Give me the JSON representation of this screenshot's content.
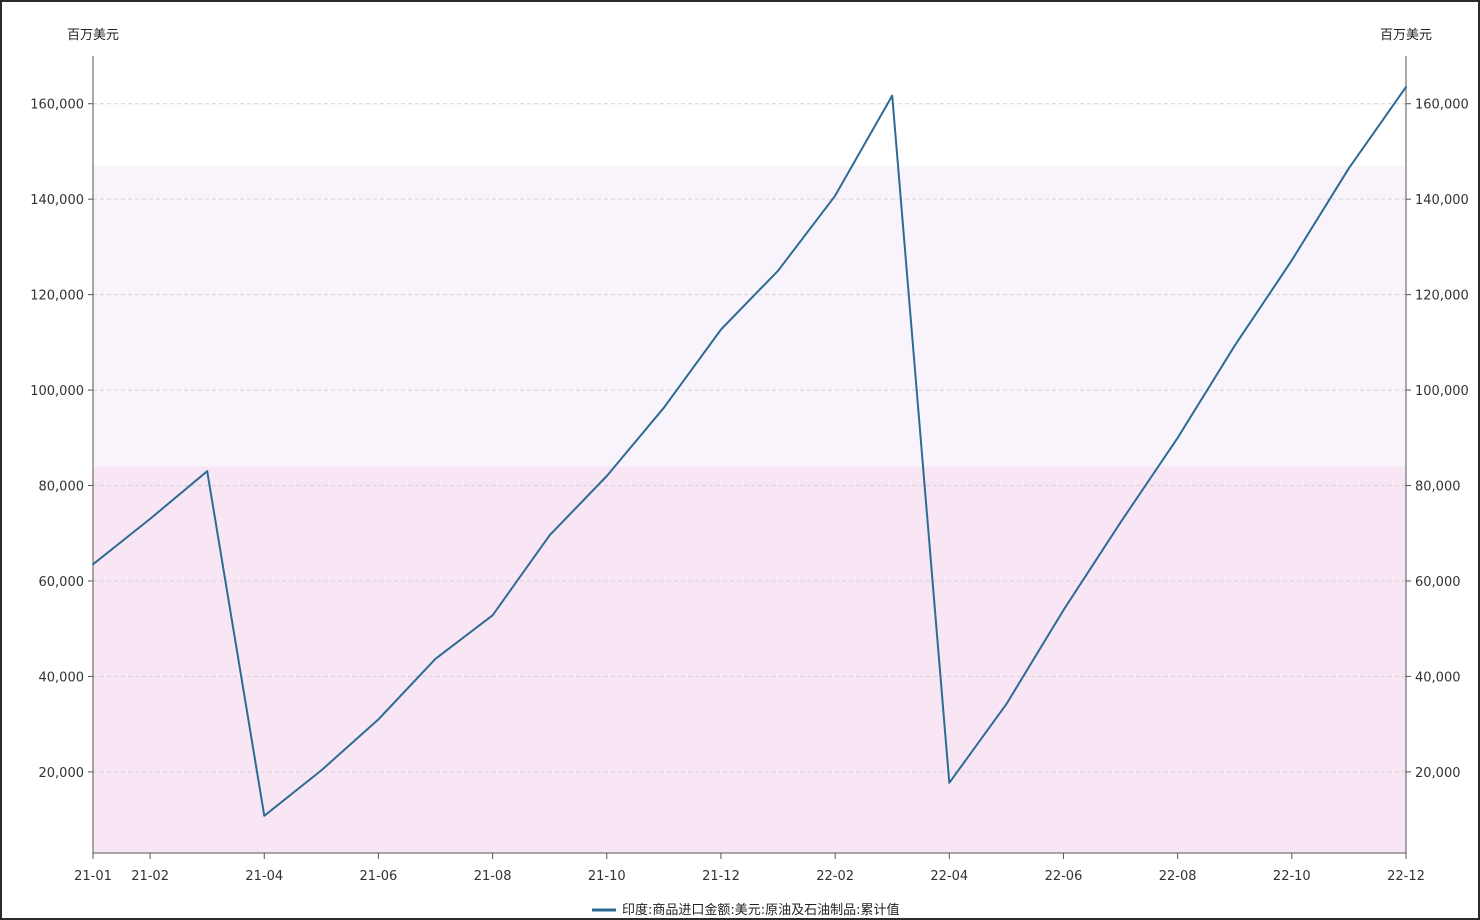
{
  "chart_data": {
    "type": "line",
    "title": "",
    "y_unit_left": "百万美元",
    "y_unit_right": "百万美元",
    "x_tick_labels": [
      "21-01",
      "21-02",
      "21-04",
      "21-06",
      "21-08",
      "21-10",
      "21-12",
      "22-02",
      "22-04",
      "22-06",
      "22-08",
      "22-10",
      "22-12"
    ],
    "y_ticks": [
      20000,
      40000,
      60000,
      80000,
      100000,
      120000,
      140000,
      160000
    ],
    "y_tick_labels": [
      "20,000",
      "40,000",
      "60,000",
      "80,000",
      "100,000",
      "120,000",
      "140,000",
      "160,000"
    ],
    "ylim": [
      3000,
      170000
    ],
    "grid": "horizontal dashed",
    "legend_position": "bottom-center",
    "background_bands": [
      {
        "from": 3000,
        "to": 84000,
        "color": "#f8e6f4"
      },
      {
        "from": 84000,
        "to": 147000,
        "color": "#f9f4fb"
      }
    ],
    "series": [
      {
        "name": "印度:商品进口金额:美元:原油及石油制品:累计值",
        "color": "#2e6b94",
        "x": [
          "21-01",
          "21-02",
          "21-03",
          "21-04",
          "21-05",
          "21-06",
          "21-07",
          "21-08",
          "21-09",
          "21-10",
          "21-11",
          "21-12",
          "22-01",
          "22-02",
          "22-03",
          "22-04",
          "22-05",
          "22-06",
          "22-07",
          "22-08",
          "22-09",
          "22-10",
          "22-11",
          "22-12"
        ],
        "values": [
          63500,
          73000,
          83000,
          10800,
          20300,
          31000,
          43700,
          52800,
          69600,
          82000,
          96300,
          112700,
          125000,
          140700,
          161700,
          17700,
          34200,
          53900,
          72300,
          90000,
          109300,
          127200,
          146500,
          163500
        ]
      }
    ]
  }
}
